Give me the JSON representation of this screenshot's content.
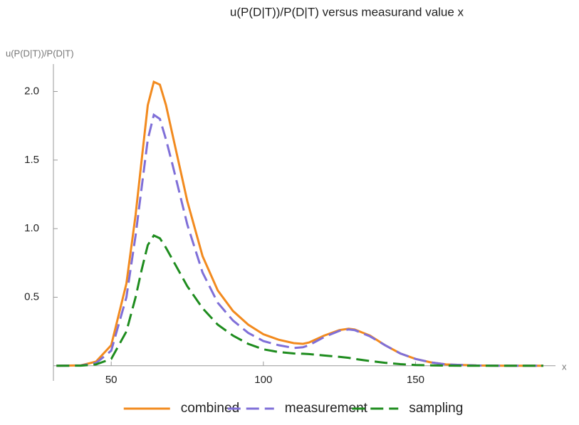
{
  "chart_data": {
    "type": "line",
    "title": "u(P(D|T))/P(D|T) versus measurand value x",
    "y_label": "u(P(D|T))/P(D|T)",
    "x_label": "x",
    "x": [
      32,
      40,
      45,
      50,
      55,
      58,
      60,
      62,
      64,
      66,
      68,
      70,
      75,
      80,
      85,
      90,
      95,
      100,
      105,
      110,
      113,
      115,
      120,
      125,
      128,
      130,
      135,
      140,
      145,
      150,
      155,
      160,
      170,
      180,
      192
    ],
    "series": [
      {
        "name": "combined",
        "color": "#f28a1e",
        "dash": "solid",
        "values": [
          0,
          0.003,
          0.03,
          0.15,
          0.6,
          1.1,
          1.5,
          1.9,
          2.07,
          2.05,
          1.9,
          1.7,
          1.2,
          0.8,
          0.55,
          0.4,
          0.3,
          0.23,
          0.19,
          0.165,
          0.16,
          0.17,
          0.22,
          0.26,
          0.27,
          0.265,
          0.22,
          0.15,
          0.09,
          0.05,
          0.025,
          0.01,
          0.002,
          0,
          0
        ]
      },
      {
        "name": "measurement",
        "color": "#7f6fd8",
        "dash": "dashed",
        "values": [
          0,
          0.002,
          0.02,
          0.11,
          0.5,
          0.95,
          1.3,
          1.65,
          1.83,
          1.8,
          1.65,
          1.48,
          1.03,
          0.68,
          0.46,
          0.33,
          0.24,
          0.18,
          0.15,
          0.13,
          0.135,
          0.15,
          0.21,
          0.255,
          0.265,
          0.26,
          0.215,
          0.15,
          0.09,
          0.05,
          0.025,
          0.01,
          0.002,
          0,
          0
        ]
      },
      {
        "name": "sampling",
        "color": "#1e8c1e",
        "dash": "dashed",
        "values": [
          0,
          0.001,
          0.01,
          0.05,
          0.25,
          0.5,
          0.7,
          0.88,
          0.95,
          0.93,
          0.86,
          0.78,
          0.58,
          0.42,
          0.3,
          0.22,
          0.16,
          0.12,
          0.1,
          0.09,
          0.088,
          0.085,
          0.075,
          0.065,
          0.058,
          0.05,
          0.035,
          0.022,
          0.012,
          0.006,
          0.003,
          0.001,
          0,
          0,
          0
        ]
      }
    ],
    "xlim": [
      31,
      196
    ],
    "ylim": [
      -0.11,
      2.2
    ],
    "xticks": [
      50,
      100,
      150
    ],
    "yticks": [
      0.5,
      {
        "value": 1,
        "label": "1.0"
      },
      1.5,
      {
        "value": 2,
        "label": "2.0"
      }
    ],
    "legend": "bottom"
  }
}
